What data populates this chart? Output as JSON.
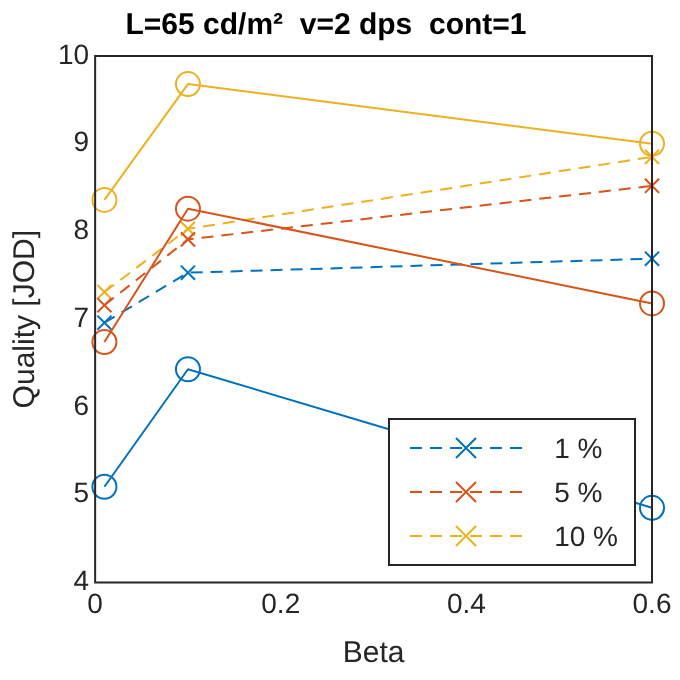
{
  "chart_data": {
    "type": "line",
    "title": "L=65 cd/m²  v=2 dps  cont=1",
    "xlabel": "Beta",
    "ylabel": "Quality [JOD]",
    "x": [
      0.01,
      0.1,
      0.6
    ],
    "series": [
      {
        "color": "#0072bd",
        "values": [
          5.09,
          6.43,
          4.85
        ],
        "marker": "circle",
        "line_style": "solid"
      },
      {
        "color": "#d95319",
        "values": [
          6.74,
          8.26,
          7.18
        ],
        "marker": "circle",
        "line_style": "solid"
      },
      {
        "color": "#edb120",
        "values": [
          8.36,
          9.68,
          9.0
        ],
        "marker": "circle",
        "line_style": "solid"
      },
      {
        "name": "1 %",
        "color": "#0072bd",
        "values": [
          6.96,
          7.53,
          7.69
        ],
        "marker": "cross",
        "line_style": "dashed"
      },
      {
        "name": "5 %",
        "color": "#d95319",
        "values": [
          7.16,
          7.91,
          8.52
        ],
        "marker": "cross",
        "line_style": "dashed"
      },
      {
        "name": "10 %",
        "color": "#edb120",
        "values": [
          7.31,
          8.03,
          8.85
        ],
        "marker": "cross",
        "line_style": "dashed"
      }
    ],
    "xlim": [
      0,
      0.6
    ],
    "xticks": [
      0,
      0.2,
      0.4,
      0.6
    ],
    "ylim": [
      4,
      10
    ],
    "yticks": [
      4,
      5,
      6,
      7,
      8,
      9,
      10
    ],
    "grid": false,
    "legend": "bottom right"
  }
}
